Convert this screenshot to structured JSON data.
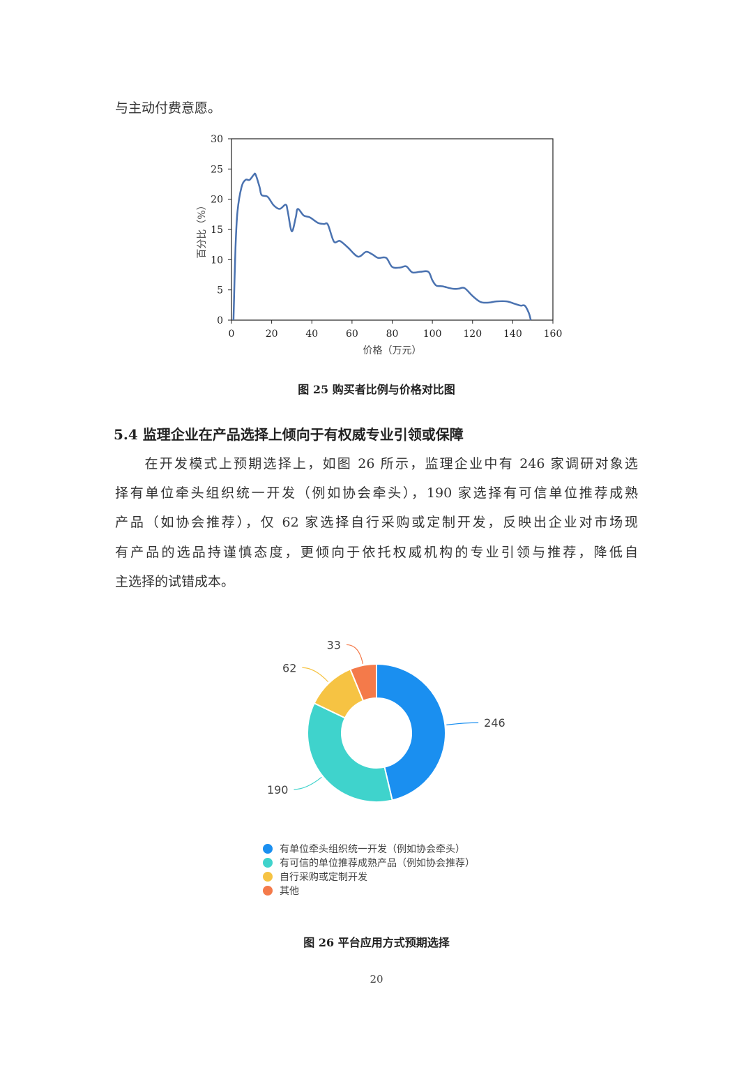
{
  "text": {
    "intro_tail": "与主动付费意愿。",
    "fig25_caption": "图 25   购买者比例与价格对比图",
    "section_heading": "5.4  监理企业在产品选择上倾向于有权威专业引领或保障",
    "paragraph_lines": [
      "　　在开发模式上预期选择上，如图 26 所示，监理企业中有 246 家调研对象选",
      "择有单位牵头组织统一开发（例如协会牵头），190 家选择有可信单位推荐成熟",
      "产品（如协会推荐），仅 62 家选择自行采购或定制开发，反映出企业对市场现",
      "有产品的选品持谨慎态度，更倾向于依托权威机构的专业引领与推荐，降低自",
      "主选择的试错成本。"
    ],
    "fig26_caption": "图 26   平台应用方式预期选择",
    "page_number": "20"
  },
  "chart_data": [
    {
      "type": "line",
      "title": "",
      "xlabel": "价格（万元）",
      "ylabel": "百分比（%）",
      "xlim": [
        0,
        160
      ],
      "ylim": [
        0,
        30
      ],
      "xticks": [
        "0",
        "20",
        "40",
        "60",
        "80",
        "100",
        "120",
        "140",
        "160"
      ],
      "yticks": [
        "0",
        "5",
        "10",
        "15",
        "20",
        "25",
        "30"
      ],
      "grid": false,
      "color": "#4a72b0",
      "x": [
        1,
        2,
        3,
        5,
        7,
        9,
        11,
        12,
        14,
        15,
        18,
        21,
        24,
        27,
        28,
        30,
        32,
        33,
        36,
        39,
        43,
        46,
        48,
        51,
        54,
        58,
        63,
        67,
        70,
        73,
        77,
        80,
        84,
        87,
        90,
        94,
        98,
        100,
        102,
        105,
        110,
        113,
        116,
        120,
        124,
        128,
        132,
        137,
        141,
        144,
        146,
        148,
        149
      ],
      "y": [
        0,
        12,
        18,
        22,
        23.2,
        23.2,
        24,
        24.1,
        22,
        20.7,
        20.4,
        19,
        18.4,
        19.1,
        18,
        14.7,
        17,
        18.4,
        17.3,
        17,
        16.1,
        15.9,
        15.8,
        13,
        13.1,
        12,
        10.5,
        11.3,
        10.9,
        10.3,
        10.3,
        8.8,
        8.7,
        8.9,
        7.9,
        8,
        8,
        6.6,
        5.7,
        5.6,
        5.2,
        5.2,
        5.3,
        4,
        3,
        2.9,
        3.1,
        3.1,
        2.7,
        2.4,
        2.4,
        1.2,
        0
      ]
    },
    {
      "type": "pie",
      "donut": true,
      "title": "",
      "categories": [
        "有单位牵头组织统一开发（例如协会牵头）",
        "有可信的单位推荐成熟产品（例如协会推荐）",
        "自行采购或定制开发",
        "其他"
      ],
      "values": [
        246,
        190,
        62,
        33
      ],
      "colors": [
        "#1a8ff0",
        "#3fd3cc",
        "#f6c343",
        "#f47a4a"
      ],
      "legend_position": "bottom-left"
    }
  ]
}
